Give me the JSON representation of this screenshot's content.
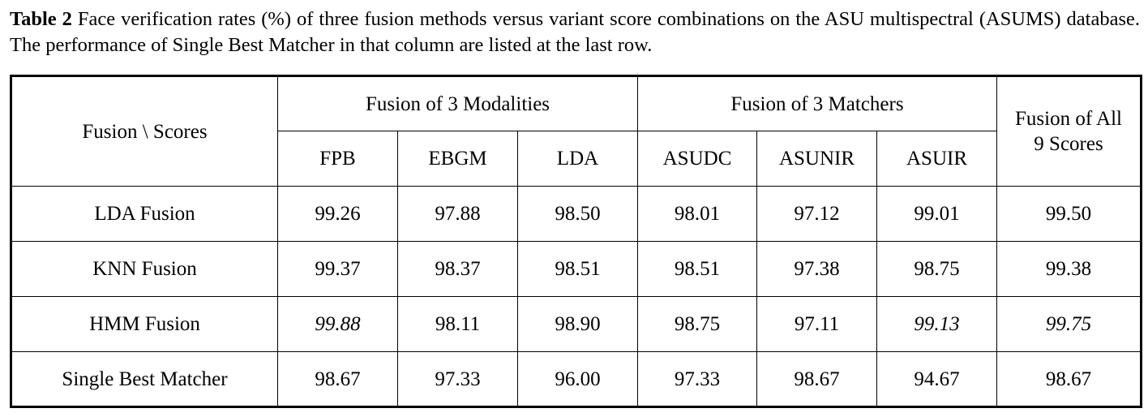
{
  "caption": {
    "label": "Table 2",
    "text": "Face verification rates (%) of three fusion methods versus variant score combinations on the ASU multispectral (ASUMS) database. The performance of Single Best Matcher in that column are listed at the last row."
  },
  "table": {
    "corner": "Fusion \\ Scores",
    "groups": [
      "Fusion of 3 Modalities",
      "Fusion of 3 Matchers",
      "Fusion of All 9 Scores"
    ],
    "columns": [
      "FPB",
      "EBGM",
      "LDA",
      "ASUDC",
      "ASUNIR",
      "ASUIR"
    ],
    "rows": [
      {
        "label": "LDA Fusion",
        "values": [
          "99.26",
          "97.88",
          "98.50",
          "98.01",
          "97.12",
          "99.01",
          "99.50"
        ],
        "italic": []
      },
      {
        "label": "KNN Fusion",
        "values": [
          "99.37",
          "98.37",
          "98.51",
          "98.51",
          "97.38",
          "98.75",
          "99.38"
        ],
        "italic": []
      },
      {
        "label": "HMM Fusion",
        "values": [
          "99.88",
          "98.11",
          "98.90",
          "98.75",
          "97.11",
          "99.13",
          "99.75"
        ],
        "italic": [
          0,
          5,
          6
        ]
      },
      {
        "label": "Single Best Matcher",
        "values": [
          "98.67",
          "97.33",
          "96.00",
          "97.33",
          "98.67",
          "94.67",
          "98.67"
        ],
        "italic": []
      }
    ]
  }
}
